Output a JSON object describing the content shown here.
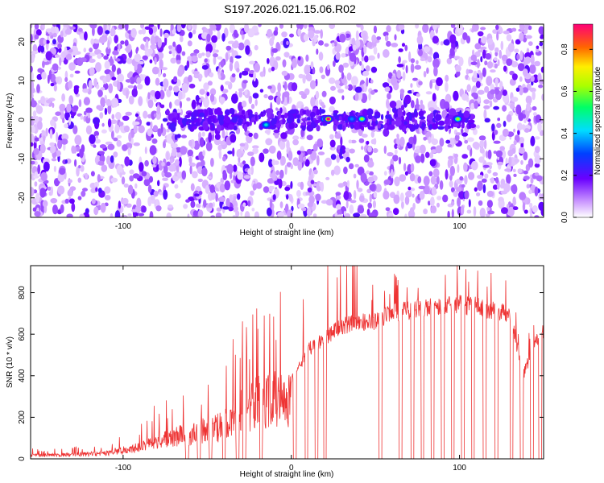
{
  "chart_data": [
    {
      "type": "heatmap",
      "title": "S197.2026.021.15.06.R02",
      "xlabel": "Height of straight line (km)",
      "ylabel": "Frequency (Hz)",
      "xlim": [
        -155,
        150
      ],
      "ylim": [
        -25,
        24.5
      ],
      "xticks": [
        -100,
        0,
        100
      ],
      "xtick_labels": [
        "-100",
        "0",
        "100"
      ],
      "yticks": [
        -20,
        -10,
        0,
        10,
        20
      ],
      "ytick_labels": [
        "-20",
        "-10",
        "0",
        "10",
        "20"
      ],
      "colorbar": {
        "label": "Normalized spectral amplitude",
        "range": [
          0,
          0.92
        ],
        "ticks": [
          0,
          0.2,
          0.4,
          0.6,
          0.8
        ],
        "tick_labels": [
          "0.0",
          "0.2",
          "0.4",
          "0.6",
          "0.8"
        ]
      },
      "band": {
        "frequency": 0,
        "x_range": [
          -75,
          110
        ],
        "amplitude": 0.3
      },
      "gaps_x": [
        [
          -20,
          -14
        ],
        [
          18,
          24
        ],
        [
          50,
          56
        ],
        [
          88,
          92
        ]
      ],
      "peaks": [
        {
          "x": -15,
          "y": -1.3,
          "amplitude": 0.45
        },
        {
          "x": 20,
          "y": 0.2,
          "amplitude": 0.55
        },
        {
          "x": 22,
          "y": 0.2,
          "amplitude": 0.92
        },
        {
          "x": 36,
          "y": 0.2,
          "amplitude": 0.35
        },
        {
          "x": 42,
          "y": 0.2,
          "amplitude": 0.62
        },
        {
          "x": 99,
          "y": 0.2,
          "amplitude": 0.62
        }
      ]
    },
    {
      "type": "line",
      "title": "",
      "xlabel": "Height of straight line (km)",
      "ylabel": "SNR (10 * v/v)",
      "xlim": [
        -155,
        150
      ],
      "ylim": [
        0,
        930
      ],
      "xticks": [
        -100,
        0,
        100
      ],
      "xtick_labels": [
        "-100",
        "0",
        "100"
      ],
      "yticks": [
        0,
        200,
        400,
        600,
        800
      ],
      "ytick_labels": [
        "0",
        "200",
        "400",
        "600",
        "800"
      ],
      "series": [
        {
          "name": "SNR",
          "color": "#ee3333",
          "envelope_x": [
            -155,
            -130,
            -110,
            -90,
            -80,
            -70,
            -60,
            -50,
            -40,
            -30,
            -20,
            -10,
            0,
            5,
            10,
            20,
            30,
            40,
            50,
            60,
            70,
            80,
            90,
            100,
            110,
            120,
            130,
            138,
            145,
            150
          ],
          "envelope_y": [
            25,
            30,
            40,
            80,
            140,
            150,
            180,
            200,
            240,
            330,
            400,
            430,
            420,
            470,
            560,
            620,
            680,
            700,
            700,
            750,
            760,
            780,
            780,
            790,
            780,
            760,
            740,
            430,
            600,
            660
          ],
          "dropout_x": [
            -62,
            -55,
            -48,
            -40,
            -32,
            -28,
            -18,
            2,
            9,
            15,
            20,
            53,
            65,
            72,
            78,
            84,
            90,
            96,
            102,
            108,
            115,
            122,
            131,
            137,
            143,
            148
          ]
        }
      ]
    }
  ]
}
